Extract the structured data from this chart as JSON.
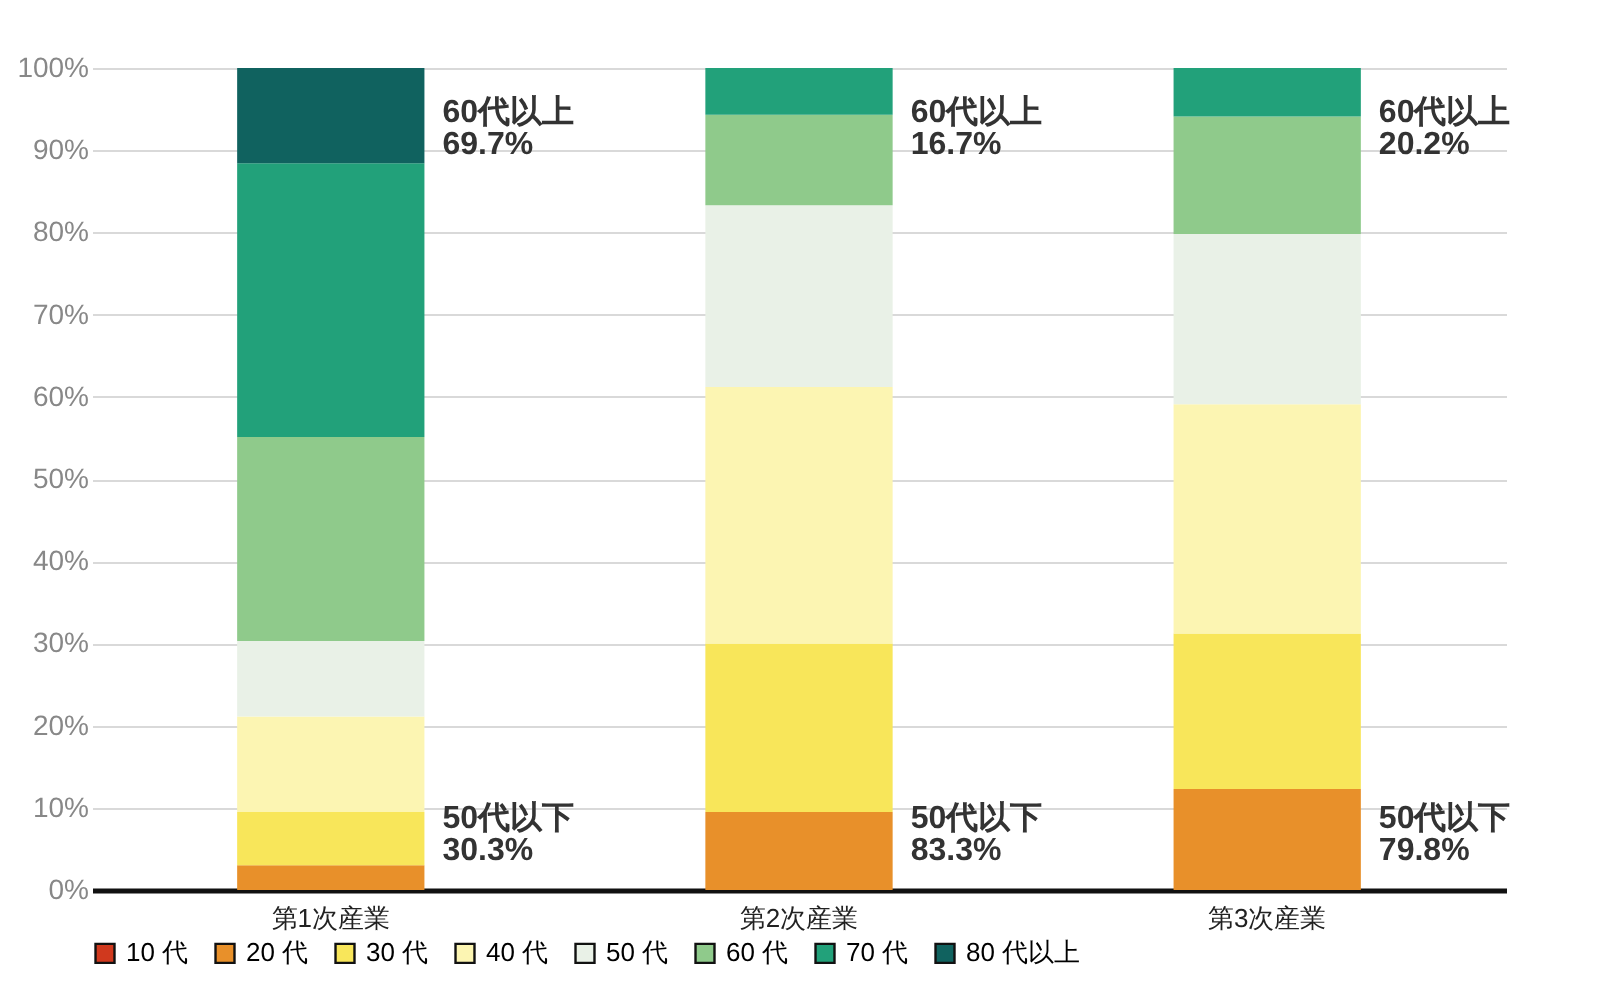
{
  "chart_data": {
    "type": "bar",
    "stacked": true,
    "categories": [
      "第1次産業",
      "第2次産業",
      "第3次産業"
    ],
    "series": [
      {
        "name": "10 代",
        "color": "#d0391e",
        "values": [
          0,
          0,
          0
        ]
      },
      {
        "name": "20 代",
        "color": "#e8902a",
        "values": [
          3.0,
          9.5,
          12.3
        ]
      },
      {
        "name": "30 代",
        "color": "#f8e65a",
        "values": [
          6.5,
          20.5,
          18.9
        ]
      },
      {
        "name": "40 代",
        "color": "#fcf5b2",
        "values": [
          11.6,
          31.2,
          27.9
        ]
      },
      {
        "name": "50 代",
        "color": "#e9f1e7",
        "values": [
          9.2,
          22.1,
          20.7
        ]
      },
      {
        "name": "60 代",
        "color": "#8fca8b",
        "values": [
          24.8,
          11.0,
          14.3
        ]
      },
      {
        "name": "70 代",
        "color": "#22a17a",
        "values": [
          33.3,
          5.7,
          5.9
        ]
      },
      {
        "name": "80 代以上",
        "color": "#10625f",
        "values": [
          11.6,
          0,
          0
        ]
      }
    ],
    "ylim": [
      0,
      100
    ],
    "yticks": [
      {
        "value": 0,
        "label": "0%"
      },
      {
        "value": 10,
        "label": "10%"
      },
      {
        "value": 20,
        "label": "20%"
      },
      {
        "value": 30,
        "label": "30%"
      },
      {
        "value": 40,
        "label": "40%"
      },
      {
        "value": 50,
        "label": "50%"
      },
      {
        "value": 60,
        "label": "60%"
      },
      {
        "value": 70,
        "label": "70%"
      },
      {
        "value": 80,
        "label": "80%"
      },
      {
        "value": 90,
        "label": "90%"
      },
      {
        "value": 100,
        "label": "100%"
      }
    ],
    "grid": "y",
    "legend": "bottom",
    "annotations": [
      "60代以上\n69.7%",
      "60代以上\n16.7%",
      "60代以上\n20.2%",
      "50代以下\n30.3%",
      "50代以下\n83.3%",
      "50代以下\n79.8%"
    ]
  }
}
